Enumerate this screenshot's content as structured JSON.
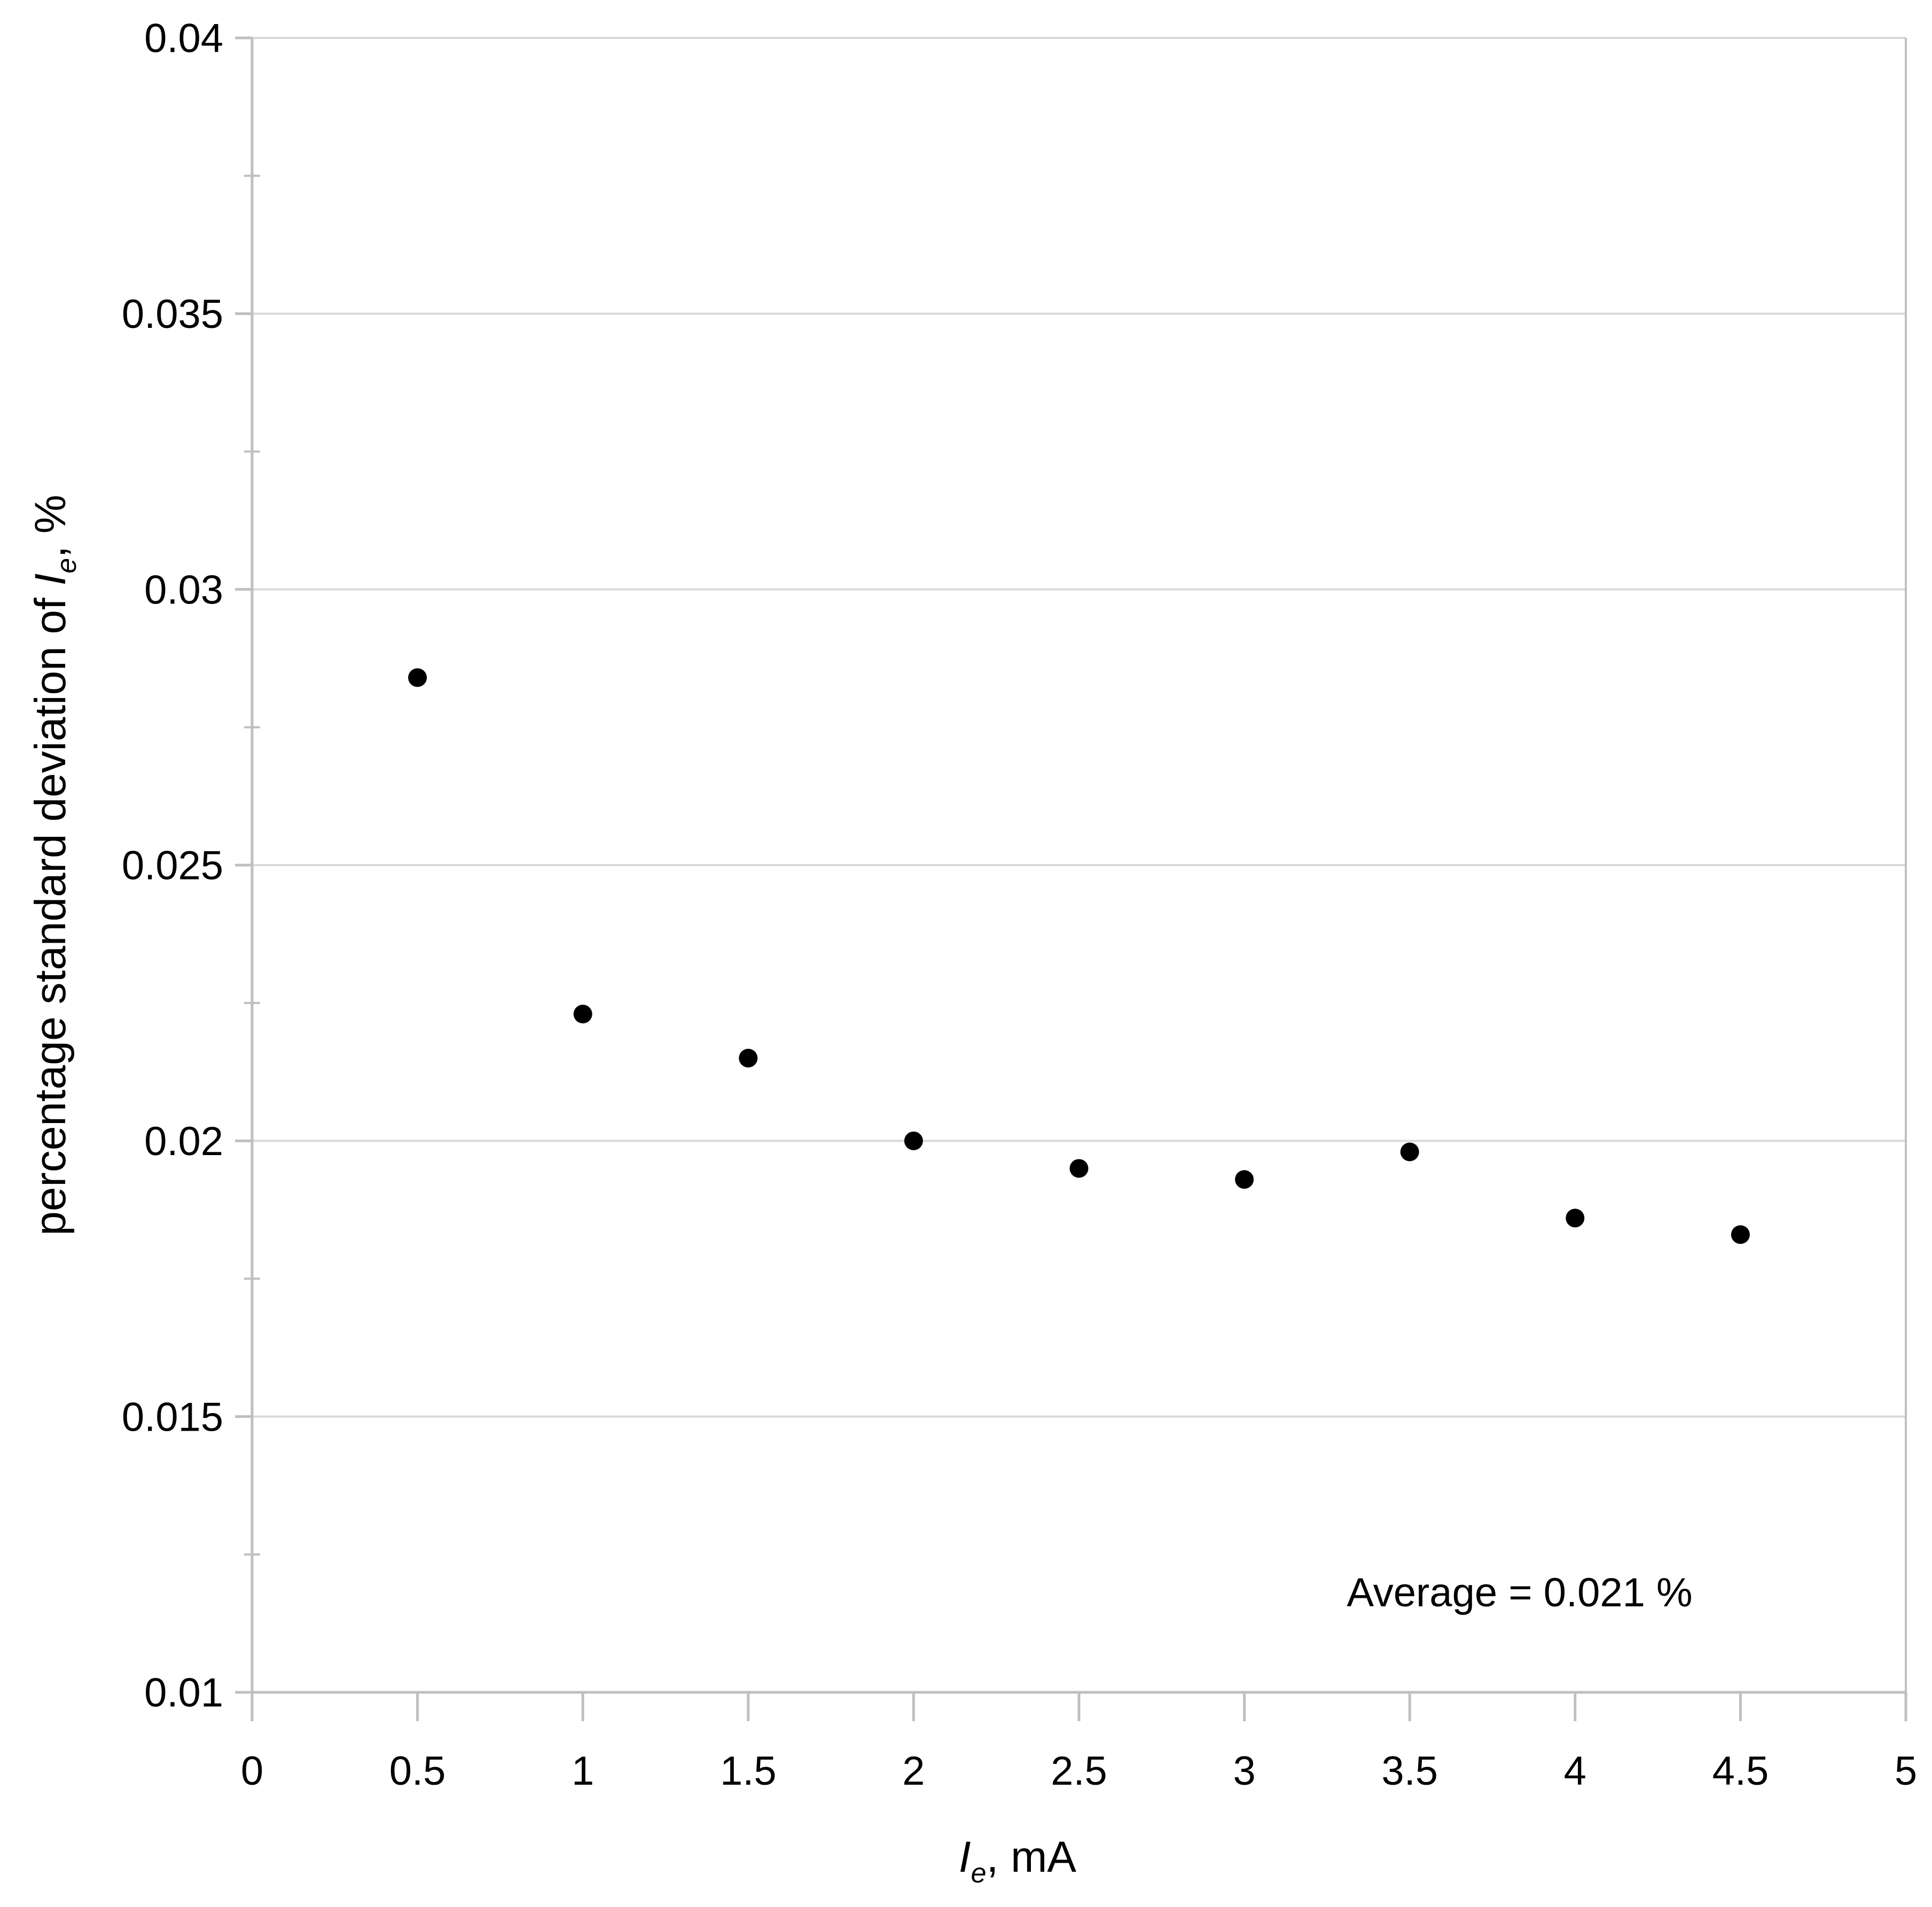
{
  "chart_data": {
    "type": "scatter",
    "title": "",
    "x_axis": {
      "title_main": "I",
      "title_sub": "e",
      "title_rest": ", mA",
      "min": 0,
      "max": 5,
      "tick_labels": [
        "0",
        "0.5",
        "1",
        "1.5",
        "2",
        "2.5",
        "3",
        "3.5",
        "4",
        "4.5",
        "5"
      ]
    },
    "y_axis": {
      "title_prefix": "percentage standard deviation of ",
      "title_main": "I",
      "title_sub": "e",
      "title_rest": ", %",
      "min": 0.01,
      "max": 0.04,
      "major_step": 0.005,
      "minor_step": 0.0025,
      "tick_labels": [
        "0.04",
        "0.035",
        "0.03",
        "0.025",
        "0.02",
        "0.015",
        "0.01"
      ]
    },
    "series": [
      {
        "name": "percentage standard deviation of Ie",
        "points": [
          {
            "x": 0.5,
            "y": 0.0284
          },
          {
            "x": 1,
            "y": 0.0223
          },
          {
            "x": 1.5,
            "y": 0.0215
          },
          {
            "x": 2,
            "y": 0.02
          },
          {
            "x": 2.5,
            "y": 0.0195
          },
          {
            "x": 3,
            "y": 0.0193
          },
          {
            "x": 3.5,
            "y": 0.0198
          },
          {
            "x": 4,
            "y": 0.0186
          },
          {
            "x": 4.5,
            "y": 0.0183
          }
        ]
      }
    ],
    "annotation": {
      "text": "Average = 0.021 %"
    },
    "grid": "horizontal-major",
    "legend": "none",
    "colors": {
      "marker": "#000000",
      "gridline": "#d9d9d9",
      "axis": "#bfbfbf",
      "text": "#000000"
    }
  }
}
